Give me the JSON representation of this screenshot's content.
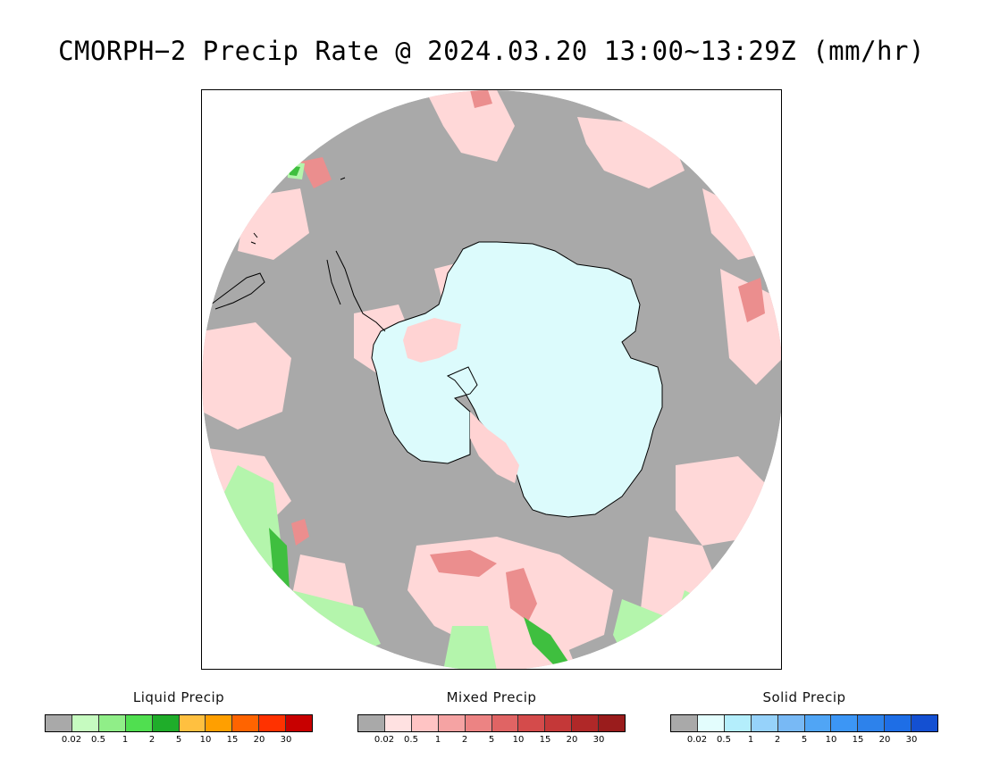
{
  "title": "CMORPH−2 Precip Rate @ 2024.03.20 13:00~13:29Z (mm/hr)",
  "map": {
    "projection": "south-polar-stereographic",
    "region": "Antarctica / Southern Ocean",
    "colors": {
      "no_precip": "#a9a9a9",
      "outside": "#ffffff",
      "mixed_light": "#ffd8d8",
      "mixed_mid": "#f4a3a3",
      "mixed_heavy": "#e57b7b",
      "liquid_light": "#b4f5ac",
      "liquid_mid": "#5ed65e",
      "liquid_heavy": "#1e9c2a",
      "solid_light": "#dcfbfc",
      "solid_mid": "#a4dcf2",
      "coastline": "#000000"
    }
  },
  "legends": [
    {
      "id": "liquid",
      "title": "Liquid Precip",
      "colors": [
        "#a9a9a9",
        "#c6fbc0",
        "#90ee88",
        "#50df50",
        "#1fad2a",
        "#ffc040",
        "#ff9f00",
        "#ff6400",
        "#ff3200",
        "#c80000"
      ],
      "ticks": [
        "0.02",
        "0.5",
        "1",
        "2",
        "5",
        "10",
        "15",
        "20",
        "30"
      ]
    },
    {
      "id": "mixed",
      "title": "Mixed Precip",
      "colors": [
        "#a9a9a9",
        "#ffe1e1",
        "#ffc4c4",
        "#f5a3a3",
        "#ec8383",
        "#e06464",
        "#d44b4b",
        "#c43838",
        "#b02828",
        "#9a1c1c"
      ],
      "ticks": [
        "0.02",
        "0.5",
        "1",
        "2",
        "5",
        "10",
        "15",
        "20",
        "30"
      ]
    },
    {
      "id": "solid",
      "title": "Solid Precip",
      "colors": [
        "#a9a9a9",
        "#e3fdfd",
        "#b4eefc",
        "#96d2fa",
        "#78b9f5",
        "#50a5f5",
        "#3c96f5",
        "#2d82eb",
        "#1e6ee6",
        "#1450d2"
      ],
      "ticks": [
        "0.02",
        "0.5",
        "1",
        "2",
        "5",
        "10",
        "15",
        "20",
        "30"
      ]
    }
  ]
}
